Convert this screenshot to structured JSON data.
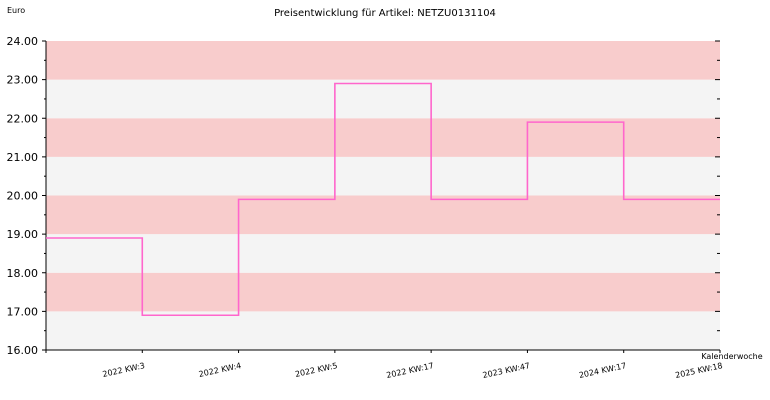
{
  "chart_data": {
    "type": "line",
    "title": "Preisentwicklung für Artikel: NETZU0131104",
    "ylabel": "Euro",
    "xlabel": "Kalenderwoche",
    "ylim": [
      16,
      24
    ],
    "yticks": [
      "16.00",
      "17.00",
      "18.00",
      "19.00",
      "20.00",
      "21.00",
      "22.00",
      "23.00",
      "24.00"
    ],
    "categories": [
      "2022 KW:3",
      "2022 KW:4",
      "2022 KW:5",
      "2022 KW:17",
      "2023 KW:47",
      "2024 KW:17",
      "2025 KW:18"
    ],
    "series": [
      {
        "values": [
          18.9,
          16.9,
          19.9,
          22.9,
          19.9,
          21.9,
          19.9
        ]
      }
    ],
    "step": true,
    "grid": true,
    "colors": {
      "line": "#ff66cc",
      "band_a": "#f8cccc",
      "band_b": "#f4f4f4",
      "axis": "#000000"
    }
  }
}
